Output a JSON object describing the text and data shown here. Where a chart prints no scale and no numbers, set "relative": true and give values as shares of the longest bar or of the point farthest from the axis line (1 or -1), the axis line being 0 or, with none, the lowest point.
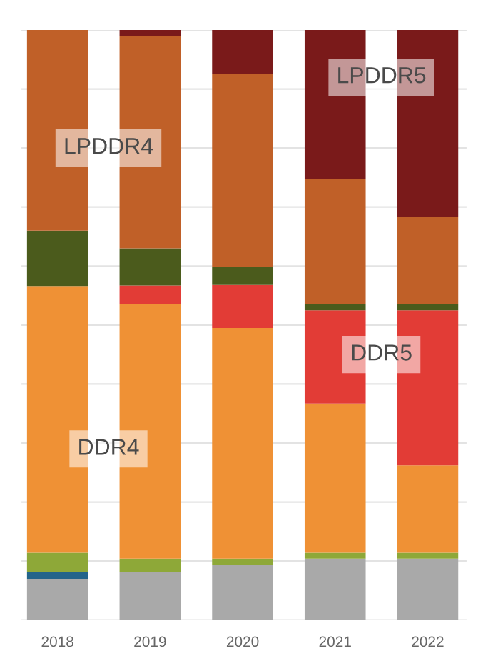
{
  "chart_data": {
    "type": "bar",
    "stacked": true,
    "relative": true,
    "categories": [
      "2018",
      "2019",
      "2020",
      "2021",
      "2022"
    ],
    "grid": "y",
    "tick_labels": "x",
    "legend": false,
    "series": [
      {
        "color": "#a9a9a9",
        "values": [
          0.07,
          0.082,
          0.093,
          0.104,
          0.104
        ]
      },
      {
        "color": "#23648a",
        "values": [
          0.012,
          null,
          null,
          null,
          null
        ]
      },
      {
        "color": "#8ea838",
        "values": [
          0.032,
          0.022,
          0.011,
          0.01,
          0.01
        ]
      },
      {
        "name": "DDR4",
        "color": "#ef9135",
        "values": [
          0.452,
          0.432,
          0.391,
          0.253,
          0.148
        ]
      },
      {
        "name": "DDR5",
        "color": "#e23c36",
        "values": [
          null,
          0.031,
          0.073,
          0.158,
          0.263
        ]
      },
      {
        "color": "#4b5b1c",
        "values": [
          0.094,
          0.063,
          0.031,
          0.011,
          0.011
        ]
      },
      {
        "name": "LPDDR4",
        "color": "#c06028",
        "values": [
          0.34,
          0.359,
          0.327,
          0.211,
          0.147
        ]
      },
      {
        "name": "LPDDR5",
        "color": "#7a1a1a",
        "values": [
          null,
          0.011,
          0.074,
          0.253,
          0.317
        ]
      }
    ]
  }
}
